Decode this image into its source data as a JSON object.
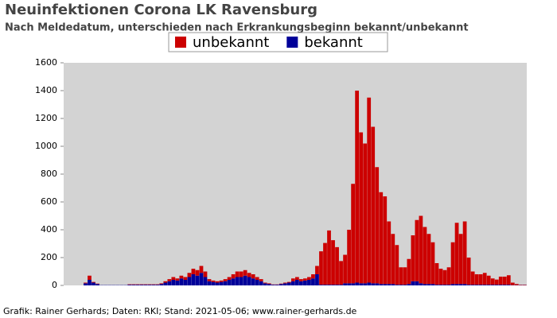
{
  "chart_data": {
    "type": "stacked-bar",
    "title": "Neuinfektionen Corona LK Ravensburg",
    "subtitle": "Nach Meldedatum, unterschieden nach Erkrankungsbeginn bekannt/unbekannt",
    "footer": "Grafik: Rainer Gerhards; Daten: RKI; Stand: 2021-05-06; www.rainer-gerhards.de",
    "ylim": [
      0,
      1600
    ],
    "yticks": [
      0,
      200,
      400,
      600,
      800,
      1000,
      1200,
      1400,
      1600
    ],
    "grid": false,
    "legend": "top",
    "series": [
      {
        "name": "bekannt",
        "color": "#000099",
        "values": [
          0,
          0,
          0,
          0,
          0,
          15,
          40,
          20,
          10,
          2,
          2,
          2,
          2,
          2,
          2,
          2,
          5,
          5,
          5,
          5,
          5,
          5,
          5,
          5,
          10,
          20,
          30,
          40,
          35,
          50,
          40,
          60,
          80,
          70,
          90,
          60,
          30,
          25,
          20,
          25,
          30,
          40,
          50,
          60,
          60,
          70,
          60,
          50,
          40,
          30,
          15,
          10,
          5,
          5,
          10,
          15,
          20,
          30,
          40,
          30,
          35,
          40,
          50,
          80,
          5,
          5,
          5,
          5,
          5,
          5,
          15,
          15,
          15,
          20,
          15,
          15,
          20,
          15,
          15,
          10,
          10,
          10,
          10,
          5,
          5,
          5,
          10,
          30,
          30,
          15,
          10,
          10,
          10,
          5,
          5,
          5,
          5,
          10,
          10,
          10,
          10,
          5,
          5,
          5,
          5,
          5,
          5,
          5,
          5,
          5,
          5,
          5,
          2,
          2,
          2,
          2
        ]
      },
      {
        "name": "unbekannt",
        "color": "#cc0000",
        "values": [
          0,
          0,
          0,
          0,
          0,
          5,
          30,
          5,
          3,
          0,
          0,
          0,
          0,
          0,
          0,
          0,
          3,
          3,
          3,
          3,
          3,
          3,
          3,
          3,
          5,
          10,
          15,
          20,
          15,
          20,
          20,
          30,
          40,
          40,
          50,
          40,
          15,
          10,
          10,
          10,
          15,
          20,
          30,
          40,
          40,
          40,
          30,
          30,
          20,
          15,
          5,
          5,
          2,
          2,
          3,
          5,
          5,
          20,
          20,
          15,
          15,
          20,
          30,
          60,
          240,
          300,
          390,
          320,
          270,
          170,
          205,
          385,
          715,
          1380,
          1085,
          1005,
          1330,
          1125,
          835,
          660,
          630,
          450,
          360,
          285,
          125,
          125,
          180,
          330,
          440,
          485,
          410,
          360,
          300,
          155,
          115,
          105,
          125,
          300,
          440,
          360,
          450,
          195,
          95,
          75,
          75,
          85,
          65,
          45,
          37,
          58,
          58,
          68,
          18,
          8,
          3,
          3
        ]
      }
    ]
  }
}
